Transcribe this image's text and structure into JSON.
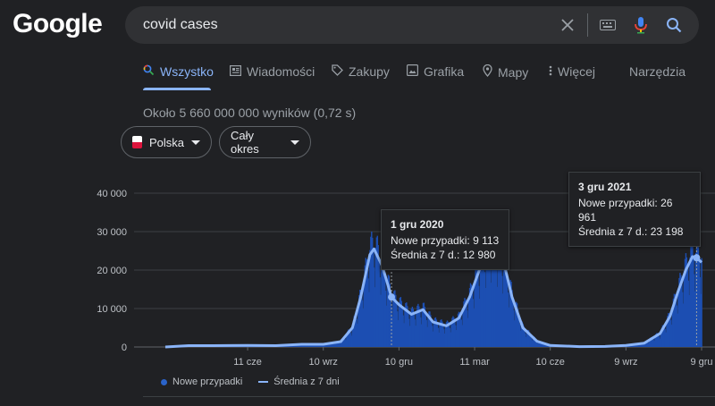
{
  "logo": "Google",
  "search": {
    "query": "covid cases"
  },
  "tabs": [
    {
      "label": "Wszystko",
      "icon": "search-icon"
    },
    {
      "label": "Wiadomości",
      "icon": "news-icon"
    },
    {
      "label": "Zakupy",
      "icon": "tag-icon"
    },
    {
      "label": "Grafika",
      "icon": "image-icon"
    },
    {
      "label": "Mapy",
      "icon": "map-pin-icon"
    },
    {
      "label": "Więcej",
      "icon": "more-vert-icon"
    }
  ],
  "tools_label": "Narzędzia",
  "results_stats": "Około 5 660 000 000 wyników (0,72 s)",
  "filters": {
    "region": "Polska",
    "period": "Cały okres"
  },
  "colors": {
    "bars": "#1d4fb3",
    "avg_line": "#8ab4f8",
    "accent": "#8ab4f8"
  },
  "chart_data": {
    "type": "bar",
    "title": "",
    "xlabel": "",
    "ylabel": "",
    "ylim": [
      0,
      40000
    ],
    "y_ticks": [
      "0",
      "10 000",
      "20 000",
      "30 000",
      "40 000"
    ],
    "x_ticks": [
      "11 cze",
      "10 wrz",
      "10 gru",
      "11 mar",
      "10 cze",
      "9 wrz",
      "9 gru"
    ],
    "legend_position": "bottom-left",
    "series": [
      {
        "name": "Nowe przypadki",
        "kind": "bar"
      },
      {
        "name": "Średnia z 7 dni",
        "kind": "line"
      }
    ],
    "avg_points": [
      {
        "d": "2020-03-04",
        "v": 0
      },
      {
        "d": "2020-04-01",
        "v": 350
      },
      {
        "d": "2020-05-01",
        "v": 350
      },
      {
        "d": "2020-06-11",
        "v": 400
      },
      {
        "d": "2020-07-15",
        "v": 350
      },
      {
        "d": "2020-08-15",
        "v": 700
      },
      {
        "d": "2020-09-10",
        "v": 700
      },
      {
        "d": "2020-10-01",
        "v": 1400
      },
      {
        "d": "2020-10-15",
        "v": 5000
      },
      {
        "d": "2020-10-25",
        "v": 13000
      },
      {
        "d": "2020-11-05",
        "v": 24000
      },
      {
        "d": "2020-11-10",
        "v": 25500
      },
      {
        "d": "2020-11-20",
        "v": 21000
      },
      {
        "d": "2020-12-01",
        "v": 12980
      },
      {
        "d": "2020-12-10",
        "v": 11000
      },
      {
        "d": "2020-12-25",
        "v": 8500
      },
      {
        "d": "2021-01-08",
        "v": 9700
      },
      {
        "d": "2021-01-20",
        "v": 6500
      },
      {
        "d": "2021-02-05",
        "v": 5500
      },
      {
        "d": "2021-02-20",
        "v": 7500
      },
      {
        "d": "2021-03-05",
        "v": 13000
      },
      {
        "d": "2021-03-20",
        "v": 22000
      },
      {
        "d": "2021-03-28",
        "v": 27500
      },
      {
        "d": "2021-04-05",
        "v": 26000
      },
      {
        "d": "2021-04-15",
        "v": 22000
      },
      {
        "d": "2021-04-25",
        "v": 13000
      },
      {
        "d": "2021-05-08",
        "v": 5000
      },
      {
        "d": "2021-05-25",
        "v": 1500
      },
      {
        "d": "2021-06-10",
        "v": 400
      },
      {
        "d": "2021-07-15",
        "v": 100
      },
      {
        "d": "2021-08-15",
        "v": 150
      },
      {
        "d": "2021-09-09",
        "v": 400
      },
      {
        "d": "2021-10-01",
        "v": 1000
      },
      {
        "d": "2021-10-20",
        "v": 3500
      },
      {
        "d": "2021-11-01",
        "v": 8000
      },
      {
        "d": "2021-11-10",
        "v": 14000
      },
      {
        "d": "2021-11-20",
        "v": 20000
      },
      {
        "d": "2021-11-28",
        "v": 23500
      },
      {
        "d": "2021-12-03",
        "v": 23198
      },
      {
        "d": "2021-12-09",
        "v": 22000
      }
    ],
    "tooltips": [
      {
        "date": "1 gru 2020",
        "cases_label": "Nowe przypadki:",
        "cases": "9 113",
        "avg_label": "Średnia z 7 d.:",
        "avg": "12 980"
      },
      {
        "date": "3 gru 2021",
        "cases_label": "Nowe przypadki:",
        "cases": "26 961",
        "avg_label": "Średnia z 7 d.:",
        "avg": "23 198"
      }
    ]
  }
}
